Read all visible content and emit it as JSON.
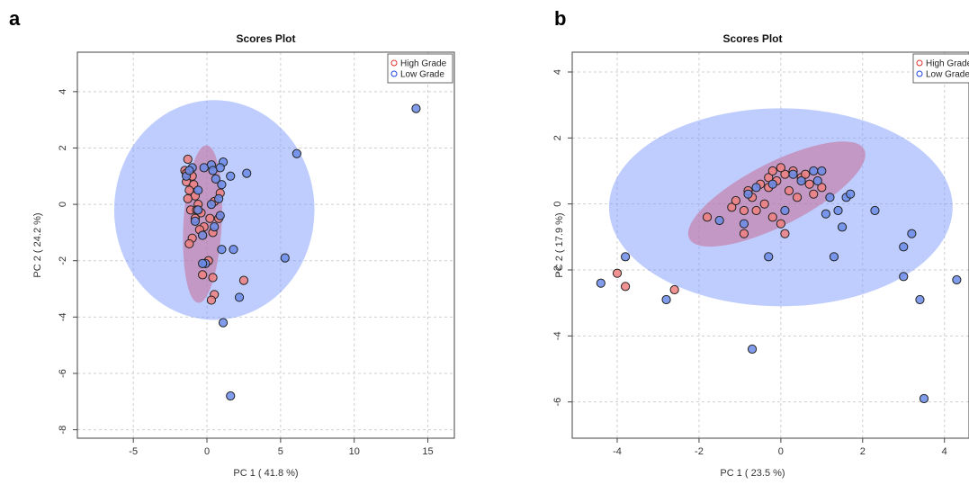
{
  "chart_data": [
    {
      "panel_label": "a",
      "type": "scatter",
      "title": "Scores Plot",
      "xlabel": "PC 1 ( 41.8 %)",
      "ylabel": "PC 2 ( 24.2 %)",
      "xlim": [
        -8.8,
        16.8
      ],
      "ylim": [
        -8.3,
        5.4
      ],
      "xticks": [
        -5,
        0,
        5,
        10,
        15
      ],
      "yticks": [
        -8,
        -6,
        -4,
        -2,
        0,
        2,
        4
      ],
      "grid": true,
      "legend_position": "top-right",
      "series": [
        {
          "name": "High Grade",
          "color": "#f08080",
          "ellipse": {
            "center": [
              -0.3,
              -0.7
            ],
            "rx": 1.3,
            "ry": 2.8,
            "angle_deg": -3
          },
          "points": [
            [
              -1.3,
              1.6
            ],
            [
              -1.5,
              1.2
            ],
            [
              -1.0,
              1.0
            ],
            [
              -1.4,
              0.8
            ],
            [
              -0.9,
              0.7
            ],
            [
              -1.2,
              0.5
            ],
            [
              -0.8,
              0.3
            ],
            [
              -1.3,
              0.2
            ],
            [
              -0.6,
              0.0
            ],
            [
              -1.1,
              -0.2
            ],
            [
              -0.4,
              -0.3
            ],
            [
              -0.8,
              -0.5
            ],
            [
              0.2,
              -0.5
            ],
            [
              -0.2,
              -0.8
            ],
            [
              -0.5,
              -0.9
            ],
            [
              0.8,
              -0.5
            ],
            [
              0.4,
              -1.0
            ],
            [
              -1.0,
              -1.2
            ],
            [
              -1.2,
              -1.4
            ],
            [
              -0.3,
              -1.1
            ],
            [
              0.1,
              -2.0
            ],
            [
              -0.3,
              -2.5
            ],
            [
              0.4,
              -2.6
            ],
            [
              2.5,
              -2.7
            ],
            [
              0.5,
              -3.2
            ],
            [
              0.3,
              -3.4
            ],
            [
              0.9,
              0.4
            ],
            [
              0.5,
              0.1
            ],
            [
              -1.4,
              1.1
            ],
            [
              -0.7,
              -0.2
            ]
          ]
        },
        {
          "name": "Low Grade",
          "color": "#6a8be8",
          "ellipse": {
            "center": [
              0.5,
              -0.2
            ],
            "rx": 6.8,
            "ry": 3.9,
            "angle_deg": 0
          },
          "points": [
            [
              14.2,
              3.4
            ],
            [
              6.1,
              1.8
            ],
            [
              2.7,
              1.1
            ],
            [
              1.6,
              1.0
            ],
            [
              1.1,
              1.5
            ],
            [
              0.9,
              1.3
            ],
            [
              0.3,
              1.4
            ],
            [
              -0.2,
              1.3
            ],
            [
              0.6,
              0.9
            ],
            [
              1.0,
              0.7
            ],
            [
              -1.0,
              1.3
            ],
            [
              -1.4,
              1.0
            ],
            [
              0.3,
              0.0
            ],
            [
              -0.6,
              -0.2
            ],
            [
              0.9,
              -0.4
            ],
            [
              0.5,
              -0.8
            ],
            [
              -0.3,
              -1.1
            ],
            [
              1.0,
              -1.6
            ],
            [
              1.8,
              -1.6
            ],
            [
              5.3,
              -1.9
            ],
            [
              -0.1,
              -2.1
            ],
            [
              -0.3,
              -2.1
            ],
            [
              2.2,
              -3.3
            ],
            [
              1.1,
              -4.2
            ],
            [
              1.6,
              -6.8
            ],
            [
              -1.2,
              1.2
            ],
            [
              -0.6,
              0.5
            ],
            [
              -0.8,
              -0.6
            ],
            [
              0.4,
              1.2
            ],
            [
              0.8,
              0.2
            ]
          ]
        }
      ]
    },
    {
      "panel_label": "b",
      "type": "scatter",
      "title": "Scores Plot",
      "xlabel": "PC 1 ( 23.5 %)",
      "ylabel": "PC 2 ( 17.9 %)",
      "xlim": [
        -5.1,
        4.6
      ],
      "ylim": [
        -7.1,
        4.6
      ],
      "xticks": [
        -4,
        -2,
        0,
        2,
        4
      ],
      "yticks": [
        -6,
        -4,
        -2,
        0,
        2,
        4
      ],
      "grid": true,
      "legend_position": "top-right",
      "series": [
        {
          "name": "High Grade",
          "color": "#f08080",
          "ellipse": {
            "center": [
              -0.1,
              0.3
            ],
            "rx": 2.4,
            "ry": 0.95,
            "angle_deg": 27
          },
          "points": [
            [
              -4.0,
              -2.1
            ],
            [
              -3.8,
              -2.5
            ],
            [
              -2.6,
              -2.6
            ],
            [
              -1.8,
              -0.4
            ],
            [
              -1.2,
              -0.1
            ],
            [
              -0.9,
              -0.9
            ],
            [
              -0.9,
              -0.2
            ],
            [
              -0.7,
              0.2
            ],
            [
              -0.4,
              0.0
            ],
            [
              -0.3,
              0.5
            ],
            [
              -0.2,
              -0.4
            ],
            [
              0.0,
              -0.6
            ],
            [
              0.1,
              -0.9
            ],
            [
              -0.5,
              0.6
            ],
            [
              -0.1,
              0.7
            ],
            [
              0.1,
              0.9
            ],
            [
              0.5,
              0.8
            ],
            [
              0.7,
              0.6
            ],
            [
              0.8,
              0.3
            ],
            [
              1.0,
              0.5
            ],
            [
              -0.3,
              0.8
            ],
            [
              0.2,
              0.4
            ],
            [
              -0.6,
              -0.2
            ],
            [
              -1.1,
              0.1
            ],
            [
              0.3,
              1.0
            ],
            [
              -0.2,
              1.0
            ],
            [
              0.4,
              0.2
            ],
            [
              -0.8,
              0.4
            ],
            [
              0.0,
              1.1
            ],
            [
              0.6,
              0.9
            ]
          ]
        },
        {
          "name": "Low Grade",
          "color": "#6a8be8",
          "ellipse": {
            "center": [
              0.0,
              -0.1
            ],
            "rx": 4.2,
            "ry": 3.0,
            "angle_deg": 0
          },
          "points": [
            [
              -4.4,
              -2.4
            ],
            [
              -3.8,
              -1.6
            ],
            [
              -2.8,
              -2.9
            ],
            [
              -1.5,
              -0.5
            ],
            [
              -0.9,
              -0.6
            ],
            [
              -0.8,
              0.3
            ],
            [
              -0.6,
              0.5
            ],
            [
              -0.3,
              -1.6
            ],
            [
              -0.7,
              -4.4
            ],
            [
              0.1,
              -0.2
            ],
            [
              0.5,
              0.7
            ],
            [
              0.8,
              1.0
            ],
            [
              1.0,
              1.0
            ],
            [
              1.1,
              -0.3
            ],
            [
              1.2,
              0.2
            ],
            [
              1.4,
              -0.2
            ],
            [
              1.3,
              -1.6
            ],
            [
              1.5,
              -0.7
            ],
            [
              1.6,
              0.2
            ],
            [
              2.3,
              -0.2
            ],
            [
              3.0,
              -1.3
            ],
            [
              3.2,
              -0.9
            ],
            [
              3.0,
              -2.2
            ],
            [
              3.4,
              -2.9
            ],
            [
              4.3,
              -2.3
            ],
            [
              3.5,
              -5.9
            ],
            [
              0.9,
              0.7
            ],
            [
              1.7,
              0.3
            ],
            [
              0.3,
              0.9
            ],
            [
              -0.2,
              0.6
            ]
          ]
        }
      ]
    }
  ]
}
